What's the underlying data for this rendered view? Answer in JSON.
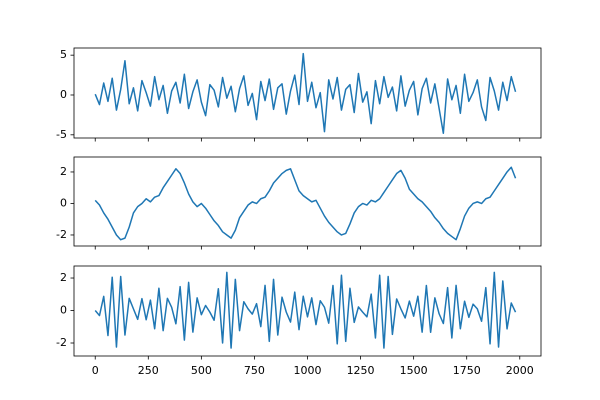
{
  "chart_data": [
    {
      "type": "line",
      "xlim": [
        -100,
        2100
      ],
      "xticks": [
        0,
        250,
        500,
        750,
        1000,
        1250,
        1500,
        1750,
        2000
      ],
      "ylim": [
        -5.4,
        5.9
      ],
      "yticks": [
        -5,
        0,
        5
      ],
      "x": [
        0,
        20,
        40,
        60,
        80,
        100,
        120,
        140,
        160,
        180,
        200,
        220,
        240,
        260,
        280,
        300,
        320,
        340,
        360,
        380,
        400,
        420,
        440,
        460,
        480,
        500,
        520,
        540,
        560,
        580,
        600,
        620,
        640,
        660,
        680,
        700,
        720,
        740,
        760,
        780,
        800,
        820,
        840,
        860,
        880,
        900,
        920,
        940,
        960,
        980,
        1000,
        1020,
        1040,
        1060,
        1080,
        1100,
        1120,
        1140,
        1160,
        1180,
        1200,
        1220,
        1240,
        1260,
        1280,
        1300,
        1320,
        1340,
        1360,
        1380,
        1400,
        1420,
        1440,
        1460,
        1480,
        1500,
        1520,
        1540,
        1560,
        1580,
        1600,
        1620,
        1640,
        1660,
        1680,
        1700,
        1720,
        1740,
        1760,
        1780,
        1800,
        1820,
        1840,
        1860,
        1880,
        1900,
        1920,
        1940,
        1960,
        1980
      ],
      "series": [
        {
          "color": "#1f77b4",
          "values": [
            0.1,
            -1.2,
            1.5,
            -0.8,
            2.1,
            -1.9,
            0.7,
            4.3,
            -1.1,
            0.9,
            -2.0,
            1.8,
            0.3,
            -1.4,
            2.3,
            -0.6,
            1.2,
            -2.3,
            0.5,
            1.6,
            -1.0,
            2.6,
            -1.7,
            0.4,
            1.9,
            -0.9,
            -2.6,
            1.3,
            0.6,
            -1.5,
            2.2,
            -0.4,
            1.1,
            -2.1,
            0.8,
            2.4,
            -1.3,
            0.2,
            -3.1,
            1.7,
            -0.7,
            2.0,
            -1.8,
            0.9,
            1.4,
            -2.4,
            0.5,
            2.5,
            -1.2,
            5.2,
            -0.8,
            1.6,
            -1.6,
            0.3,
            -4.6,
            1.9,
            -0.5,
            2.2,
            -1.9,
            0.7,
            1.3,
            -2.2,
            2.7,
            -0.9,
            0.4,
            -3.6,
            1.8,
            -1.1,
            2.3,
            -0.3,
            1.0,
            -2.0,
            2.4,
            -1.4,
            0.6,
            1.7,
            -2.5,
            0.8,
            2.1,
            -1.0,
            1.4,
            -1.7,
            -4.8,
            2.0,
            -0.6,
            1.2,
            -2.3,
            2.6,
            -0.8,
            0.3,
            1.9,
            -1.5,
            -3.2,
            2.2,
            0.5,
            -1.9,
            1.6,
            -0.7,
            2.3,
            0.4
          ]
        }
      ]
    },
    {
      "type": "line",
      "xlim": [
        -100,
        2100
      ],
      "xticks": [
        0,
        250,
        500,
        750,
        1000,
        1250,
        1500,
        1750,
        2000
      ],
      "ylim": [
        -2.7,
        2.95
      ],
      "yticks": [
        -2,
        0,
        2
      ],
      "x": [
        0,
        20,
        40,
        60,
        80,
        100,
        120,
        140,
        160,
        180,
        200,
        220,
        240,
        260,
        280,
        300,
        320,
        340,
        360,
        380,
        400,
        420,
        440,
        460,
        480,
        500,
        520,
        540,
        560,
        580,
        600,
        620,
        640,
        660,
        680,
        700,
        720,
        740,
        760,
        780,
        800,
        820,
        840,
        860,
        880,
        900,
        920,
        940,
        960,
        980,
        1000,
        1020,
        1040,
        1060,
        1080,
        1100,
        1120,
        1140,
        1160,
        1180,
        1200,
        1220,
        1240,
        1260,
        1280,
        1300,
        1320,
        1340,
        1360,
        1380,
        1400,
        1420,
        1440,
        1460,
        1480,
        1500,
        1520,
        1540,
        1560,
        1580,
        1600,
        1620,
        1640,
        1660,
        1680,
        1700,
        1720,
        1740,
        1760,
        1780,
        1800,
        1820,
        1840,
        1860,
        1880,
        1900,
        1920,
        1940,
        1960,
        1980
      ],
      "series": [
        {
          "color": "#1f77b4",
          "values": [
            0.2,
            -0.1,
            -0.6,
            -1.0,
            -1.5,
            -2.0,
            -2.3,
            -2.2,
            -1.5,
            -0.6,
            -0.2,
            0.0,
            0.3,
            0.1,
            0.4,
            0.5,
            1.0,
            1.4,
            1.8,
            2.2,
            1.9,
            1.3,
            0.6,
            0.1,
            -0.2,
            0.0,
            -0.3,
            -0.7,
            -1.1,
            -1.4,
            -1.8,
            -2.0,
            -2.2,
            -1.7,
            -0.9,
            -0.5,
            -0.1,
            0.1,
            0.0,
            0.3,
            0.4,
            0.8,
            1.3,
            1.6,
            1.9,
            2.1,
            2.2,
            1.5,
            0.8,
            0.5,
            0.3,
            0.1,
            0.2,
            -0.3,
            -0.8,
            -1.2,
            -1.5,
            -1.8,
            -2.0,
            -1.9,
            -1.3,
            -0.6,
            -0.2,
            0.0,
            -0.1,
            0.2,
            0.1,
            0.3,
            0.7,
            1.1,
            1.5,
            1.9,
            2.1,
            1.6,
            0.9,
            0.6,
            0.3,
            0.1,
            -0.2,
            -0.5,
            -0.9,
            -1.2,
            -1.6,
            -1.9,
            -2.1,
            -2.3,
            -1.6,
            -0.8,
            -0.3,
            0.0,
            0.1,
            0.0,
            0.3,
            0.4,
            0.8,
            1.2,
            1.6,
            2.0,
            2.3,
            1.6
          ]
        }
      ]
    },
    {
      "type": "line",
      "xlim": [
        -100,
        2100
      ],
      "xticks": [
        0,
        250,
        500,
        750,
        1000,
        1250,
        1500,
        1750,
        2000
      ],
      "ylim": [
        -2.8,
        2.74
      ],
      "yticks": [
        -2,
        0,
        2
      ],
      "x": [
        0,
        20,
        40,
        60,
        80,
        100,
        120,
        140,
        160,
        180,
        200,
        220,
        240,
        260,
        280,
        300,
        320,
        340,
        360,
        380,
        400,
        420,
        440,
        460,
        480,
        500,
        520,
        540,
        560,
        580,
        600,
        620,
        640,
        660,
        680,
        700,
        720,
        740,
        760,
        780,
        800,
        820,
        840,
        860,
        880,
        900,
        920,
        940,
        960,
        980,
        1000,
        1020,
        1040,
        1060,
        1080,
        1100,
        1120,
        1140,
        1160,
        1180,
        1200,
        1220,
        1240,
        1260,
        1280,
        1300,
        1320,
        1340,
        1360,
        1380,
        1400,
        1420,
        1440,
        1460,
        1480,
        1500,
        1520,
        1540,
        1560,
        1580,
        1600,
        1620,
        1640,
        1660,
        1680,
        1700,
        1720,
        1740,
        1760,
        1780,
        1800,
        1820,
        1840,
        1860,
        1880,
        1900,
        1920,
        1940,
        1960,
        1980
      ],
      "series": [
        {
          "color": "#1f77b4",
          "values": [
            0,
            -0.31,
            0.87,
            -1.54,
            2.05,
            -2.25,
            2.09,
            -1.51,
            0.75,
            0.1,
            -0.54,
            0.73,
            -0.57,
            0.64,
            -1.12,
            1.37,
            -1.24,
            0.75,
            0.2,
            -0.82,
            1.47,
            -1.82,
            1.73,
            -1.33,
            0.78,
            -0.26,
            0.31,
            -0.1,
            -0.6,
            1.34,
            -2.0,
            2.35,
            -2.31,
            1.92,
            -1.24,
            0.54,
            0.1,
            -0.22,
            0.42,
            -0.99,
            1.55,
            -1.9,
            1.92,
            -1.51,
            0.82,
            -0.1,
            -0.71,
            1.13,
            -1.18,
            0.88,
            -0.39,
            0.78,
            -0.87,
            0.6,
            0.2,
            -0.78,
            1.54,
            -2.05,
            2.17,
            -1.9,
            1.37,
            -0.73,
            0.22,
            -0.1,
            -0.39,
            1.01,
            -1.69,
            2.17,
            -2.31,
            2.09,
            -1.47,
            0.71,
            0.1,
            -0.46,
            0.58,
            -0.35,
            0.88,
            -1.33,
            1.54,
            -1.34,
            0.78,
            -0.2,
            -0.8,
            1.41,
            -1.69,
            1.55,
            -1.12,
            0.57,
            -0.42,
            0.39,
            0.1,
            -0.66,
            1.41,
            -2.05,
            2.35,
            -2.25,
            1.82,
            -1.13,
            0.46,
            -0.1
          ]
        }
      ]
    }
  ]
}
